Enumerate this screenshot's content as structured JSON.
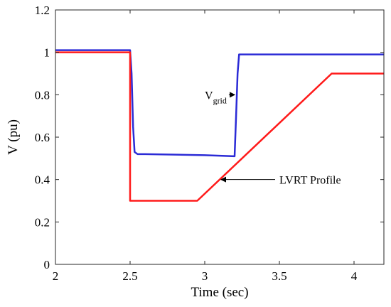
{
  "chart_data": {
    "type": "line",
    "xlabel": "Time (sec)",
    "ylabel": "V (pu)",
    "xlim": [
      2,
      4.2
    ],
    "ylim": [
      0,
      1.2
    ],
    "xticks": [
      "2",
      "2.5",
      "3",
      "3.5",
      "4"
    ],
    "yticks": [
      "0",
      "0.2",
      "0.4",
      "0.6",
      "0.8",
      "1",
      "1.2"
    ],
    "grid": false,
    "series": [
      {
        "color": "#2b2bd6",
        "x": [
          2.0,
          2.5,
          2.51,
          2.52,
          2.53,
          2.55,
          2.6,
          3.0,
          3.2,
          3.21,
          3.22,
          3.23,
          3.25,
          3.5,
          4.0,
          4.2
        ],
        "y": [
          1.01,
          1.01,
          0.9,
          0.65,
          0.53,
          0.52,
          0.52,
          0.515,
          0.51,
          0.7,
          0.9,
          0.99,
          0.99,
          0.99,
          0.99,
          0.99
        ]
      },
      {
        "color": "#ff1a1a",
        "x": [
          2.0,
          2.5,
          2.5,
          2.95,
          3.85,
          4.2
        ],
        "y": [
          1.0,
          1.0,
          0.3,
          0.3,
          0.9,
          0.9
        ]
      }
    ],
    "annotations": [
      {
        "text": "V",
        "subscript": "grid",
        "x": 3.0,
        "y": 0.8,
        "arrow_to": [
          3.21,
          0.8
        ]
      },
      {
        "text": "LVRT Profile",
        "subscript": "",
        "x": 3.5,
        "y": 0.4,
        "arrow_to": [
          3.1,
          0.4
        ]
      }
    ]
  }
}
